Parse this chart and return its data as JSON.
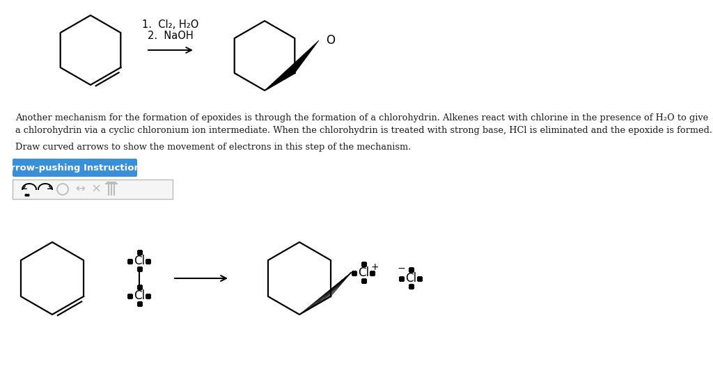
{
  "bg_color": "#ffffff",
  "text_color": "#1a1a1a",
  "body_text_line1": "Another mechanism for the formation of epoxides is through the formation of a chlorohydrin. Alkenes react with chlorine in the presence of H₂O to give",
  "body_text_line2": "a chlorohydrin via a cyclic chloronium ion intermediate. When the chlorohydrin is treated with strong base, HCl is eliminated and the epoxide is formed.",
  "body_text_line3": "Draw curved arrows to show the movement of electrons in this step of the mechanism.",
  "button_text": "Arrow-pushing Instructions",
  "button_bg": "#3a8fd9",
  "button_text_color": "#ffffff",
  "reagent_line1": "1.  Cl₂, H₂O",
  "reagent_line2": "2.  NaOH"
}
